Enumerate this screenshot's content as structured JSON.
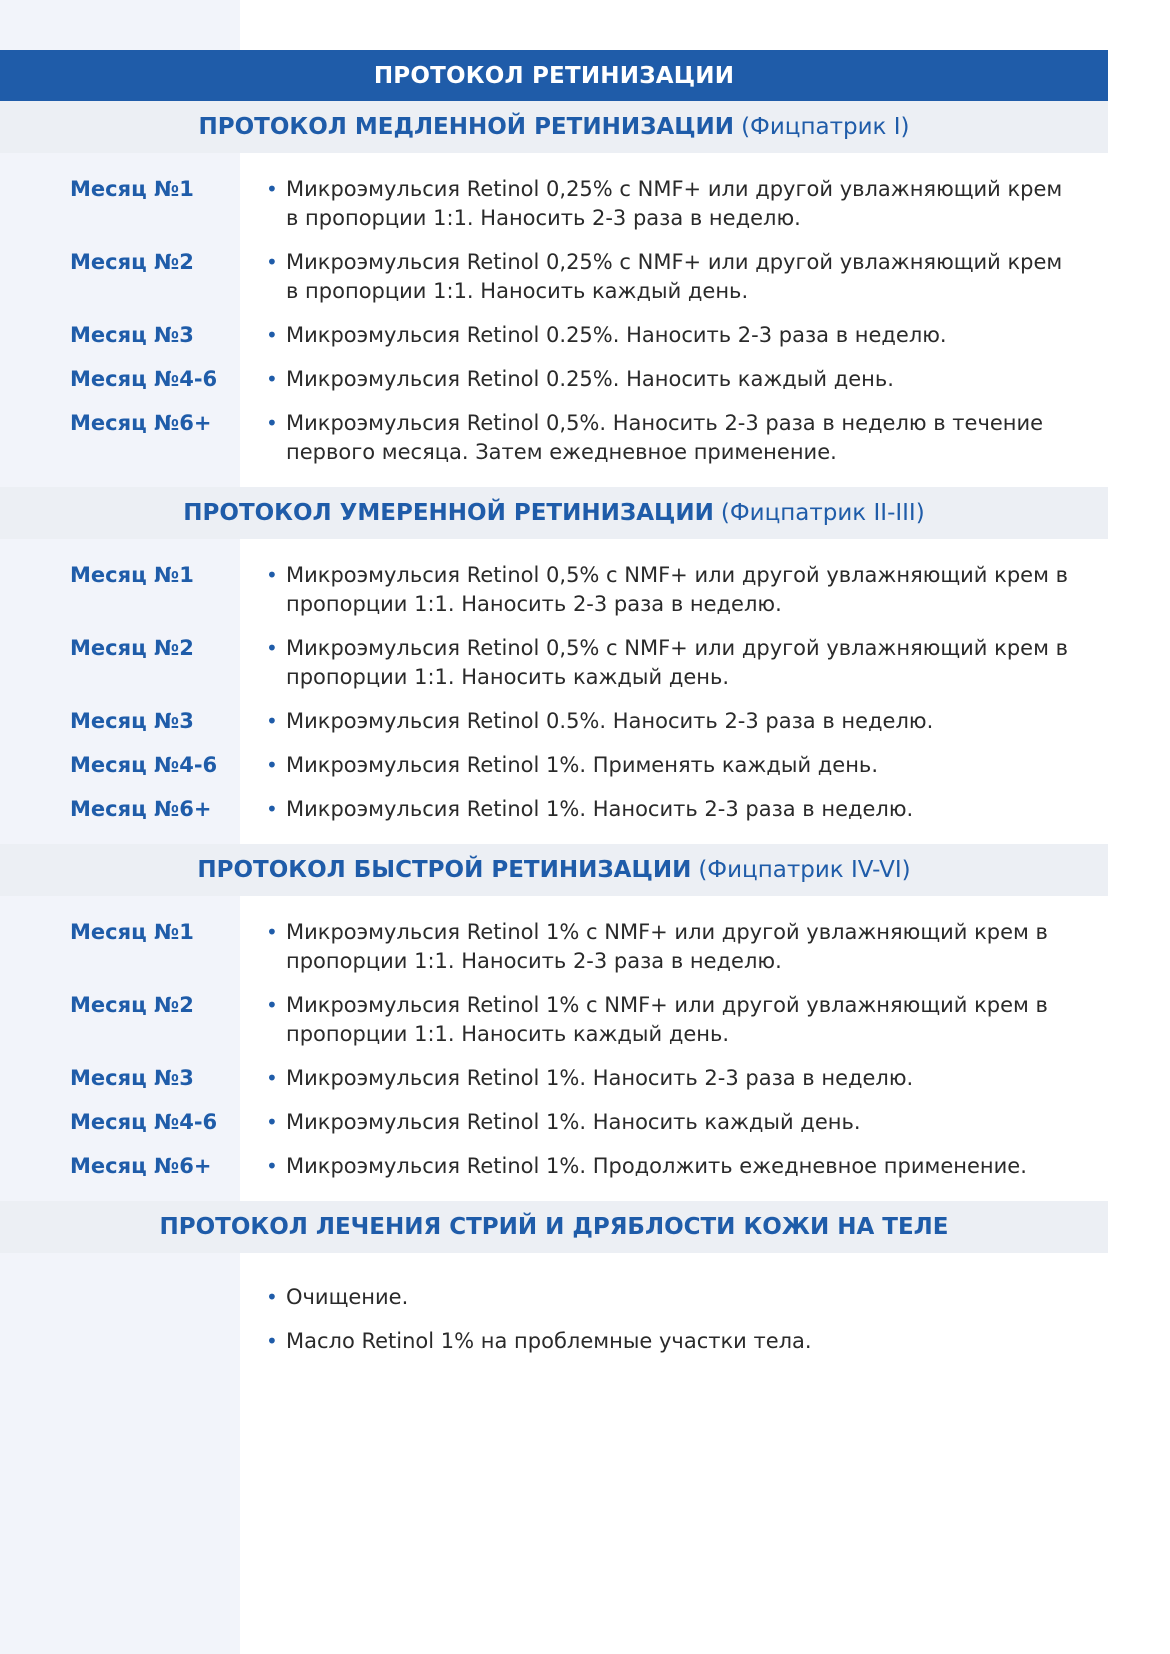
{
  "title": "ПРОТОКОЛ РЕТИНИЗАЦИИ",
  "sections": [
    {
      "title": "ПРОТОКОЛ МЕДЛЕННОЙ РЕТИНИЗАЦИИ",
      "subtitle": "(Фицпатрик I)",
      "rows": [
        {
          "month": "Месяц №1",
          "text": "Микроэмульсия Retinol 0,25% с NMF+ или другой увлажняющий крем в пропорции 1:1. Наносить 2-3 раза в неделю."
        },
        {
          "month": "Месяц №2",
          "text": "Микроэмульсия Retinol 0,25% с NMF+ или другой увлажняющий крем в пропорции 1:1. Наносить каждый день."
        },
        {
          "month": "Месяц №3",
          "text": "Микроэмульсия Retinol 0.25%. Наносить 2-3 раза в неделю."
        },
        {
          "month": "Месяц №4-6",
          "text": "Микроэмульсия Retinol 0.25%. Наносить каждый день."
        },
        {
          "month": "Месяц №6+",
          "text": "Микроэмульсия Retinol 0,5%. Наносить 2-3 раза в неделю в течение первого месяца. Затем ежедневное применение."
        }
      ]
    },
    {
      "title": "ПРОТОКОЛ УМЕРЕННОЙ РЕТИНИЗАЦИИ",
      "subtitle": "(Фицпатрик II-III)",
      "rows": [
        {
          "month": "Месяц №1",
          "text": "Микроэмульсия Retinol 0,5% с NMF+ или другой увлажняющий крем в пропорции 1:1. Наносить 2-3 раза в неделю."
        },
        {
          "month": "Месяц №2",
          "text": "Микроэмульсия Retinol 0,5% с NMF+ или другой увлажняющий крем в пропорции 1:1. Наносить каждый день."
        },
        {
          "month": "Месяц №3",
          "text": "Микроэмульсия Retinol 0.5%. Наносить 2-3 раза в неделю."
        },
        {
          "month": "Месяц №4-6",
          "text": "Микроэмульсия Retinol 1%. Применять каждый день."
        },
        {
          "month": "Месяц №6+",
          "text": "Микроэмульсия Retinol 1%. Наносить 2-3 раза в неделю."
        }
      ]
    },
    {
      "title": "ПРОТОКОЛ БЫСТРОЙ РЕТИНИЗАЦИИ",
      "subtitle": "(Фицпатрик IV-VI)",
      "rows": [
        {
          "month": "Месяц №1",
          "text": "Микроэмульсия Retinol 1% с NMF+ или другой увлажняющий крем в пропорции 1:1. Наносить 2-3 раза в неделю."
        },
        {
          "month": "Месяц №2",
          "text": "Микроэмульсия Retinol 1% с NMF+ или другой увлажняющий крем в пропорции 1:1. Наносить каждый день."
        },
        {
          "month": "Месяц №3",
          "text": "Микроэмульсия Retinol 1%. Наносить 2-3 раза в неделю."
        },
        {
          "month": "Месяц №4-6",
          "text": "Микроэмульсия Retinol 1%. Наносить каждый день."
        },
        {
          "month": "Месяц №6+",
          "text": "Микроэмульсия Retinol 1%. Продолжить ежедневное применение."
        }
      ]
    },
    {
      "title": "ПРОТОКОЛ ЛЕЧЕНИЯ СТРИЙ И ДРЯБЛОСТИ КОЖИ НА ТЕЛЕ",
      "subtitle": "",
      "rows": [
        {
          "month": "",
          "text": "Очищение."
        },
        {
          "month": "",
          "text": "Масло Retinol 1% на проблемные участки тела."
        }
      ]
    }
  ],
  "colors": {
    "brand_blue": "#1f5ca9",
    "header_gray": "#eceff4",
    "left_column": "#f2f4fa"
  }
}
